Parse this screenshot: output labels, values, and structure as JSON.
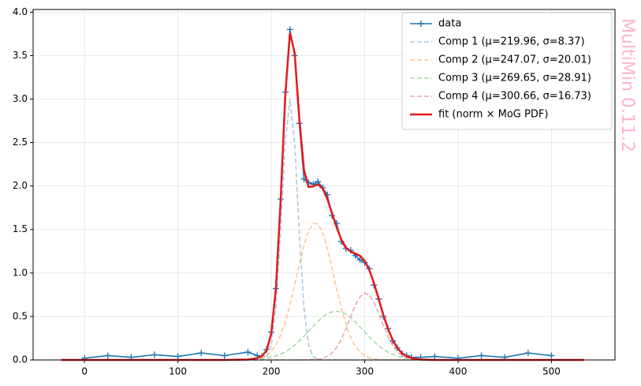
{
  "chart_data": {
    "type": "line",
    "watermark": "MultiMin 0.11.2",
    "x": [
      -25,
      0,
      25,
      50,
      75,
      100,
      125,
      150,
      175,
      185,
      190,
      195,
      200,
      205,
      210,
      215,
      220,
      225,
      230,
      235,
      240,
      245,
      250,
      255,
      260,
      265,
      270,
      275,
      280,
      285,
      290,
      295,
      300,
      305,
      310,
      315,
      320,
      325,
      330,
      335,
      340,
      345,
      350,
      360,
      375,
      400,
      425,
      450,
      475,
      500,
      535
    ],
    "series": [
      {
        "name": "data",
        "color": "#1f77b4",
        "linestyle": "solid",
        "marker": "+",
        "values": [
          null,
          0.02,
          0.05,
          0.03,
          0.06,
          0.04,
          0.08,
          0.05,
          0.09,
          0.05,
          0.04,
          0.12,
          0.32,
          0.82,
          1.85,
          3.08,
          3.8,
          3.5,
          2.72,
          2.08,
          2.04,
          2.02,
          2.05,
          1.98,
          1.9,
          1.66,
          1.57,
          1.36,
          1.28,
          1.26,
          1.2,
          1.15,
          1.12,
          1.05,
          0.86,
          0.7,
          0.5,
          0.36,
          0.22,
          0.14,
          0.07,
          0.05,
          0.03,
          0.03,
          0.04,
          0.02,
          0.05,
          0.03,
          0.08,
          0.05,
          null
        ]
      },
      {
        "name": "Comp 1 (μ=219.96, σ=8.37)",
        "color": "#a9c9e1",
        "linestyle": "dashed",
        "values": [
          0,
          0,
          0,
          0,
          0,
          0,
          0,
          0,
          0,
          0,
          0.005,
          0.035,
          0.175,
          0.608,
          1.478,
          2.516,
          3.0,
          2.503,
          1.461,
          0.597,
          0.171,
          0.034,
          0.005,
          0,
          0,
          0,
          0,
          0,
          0,
          0,
          0,
          0,
          0,
          0,
          0,
          0,
          0,
          0,
          0,
          0,
          0,
          0,
          0,
          0,
          0,
          0,
          0,
          0,
          0,
          0,
          0
        ]
      },
      {
        "name": "Comp 2 (μ=247.07, σ=20.01)",
        "color": "#ffc594",
        "linestyle": "dashed",
        "values": [
          0,
          0,
          0,
          0,
          0,
          0,
          0,
          0,
          0,
          0.013,
          0.027,
          0.053,
          0.099,
          0.173,
          0.284,
          0.437,
          0.633,
          0.86,
          1.098,
          1.317,
          1.484,
          1.572,
          1.563,
          1.461,
          1.282,
          1.058,
          0.819,
          0.597,
          0.408,
          0.262,
          0.158,
          0.09,
          0.048,
          0.024,
          0.011,
          0.005,
          0,
          0,
          0,
          0,
          0,
          0,
          0,
          0,
          0,
          0,
          0,
          0,
          0,
          0,
          0
        ]
      },
      {
        "name": "Comp 3 (μ=269.65, σ=28.91)",
        "color": "#aad9aa",
        "linestyle": "dashed",
        "values": [
          0,
          0,
          0,
          0,
          0,
          0,
          0,
          0,
          0.003,
          0.008,
          0.013,
          0.02,
          0.031,
          0.046,
          0.067,
          0.094,
          0.128,
          0.17,
          0.219,
          0.273,
          0.331,
          0.389,
          0.444,
          0.493,
          0.53,
          0.553,
          0.56,
          0.55,
          0.525,
          0.486,
          0.437,
          0.381,
          0.323,
          0.265,
          0.211,
          0.164,
          0.123,
          0.09,
          0.063,
          0.044,
          0.029,
          0.019,
          0.012,
          0.004,
          0,
          0,
          0,
          0,
          0,
          0,
          0
        ]
      },
      {
        "name": "Comp 4 (μ=300.66, σ=16.73)",
        "color": "#eaa9a9",
        "linestyle": "dashed",
        "values": [
          0,
          0,
          0,
          0,
          0,
          0,
          0,
          0,
          0,
          0,
          0,
          0,
          0,
          0,
          0,
          0,
          0,
          0,
          0,
          0,
          0.001,
          0.003,
          0.008,
          0.019,
          0.04,
          0.079,
          0.144,
          0.238,
          0.359,
          0.497,
          0.629,
          0.727,
          0.769,
          0.745,
          0.659,
          0.533,
          0.395,
          0.267,
          0.165,
          0.094,
          0.049,
          0.023,
          0.01,
          0.001,
          0,
          0,
          0,
          0,
          0,
          0,
          0
        ]
      },
      {
        "name": "fit (norm × MoG PDF)",
        "color": "#e31a1c",
        "linestyle": "solid",
        "width": 2.5,
        "values": [
          0,
          0,
          0,
          0,
          0,
          0,
          0,
          0,
          0.005,
          0.021,
          0.045,
          0.108,
          0.305,
          0.827,
          1.829,
          3.047,
          3.761,
          3.533,
          2.778,
          2.187,
          1.987,
          1.998,
          2.02,
          1.973,
          1.852,
          1.69,
          1.523,
          1.385,
          1.292,
          1.245,
          1.224,
          1.198,
          1.14,
          1.034,
          0.881,
          0.702,
          0.518,
          0.357,
          0.228,
          0.138,
          0.078,
          0.042,
          0.022,
          0.005,
          0,
          0,
          0,
          0,
          0,
          0,
          0
        ]
      }
    ],
    "xlim": [
      -55,
      568
    ],
    "xticks": [
      0,
      100,
      200,
      300,
      400,
      500
    ],
    "ylim": [
      0,
      4.03
    ],
    "yticks": [
      {
        "value": 0,
        "label": "0.0"
      },
      {
        "value": 0.5,
        "label": "0.5"
      },
      {
        "value": 1,
        "label": "1.0"
      },
      {
        "value": 1.5,
        "label": "1.5"
      },
      {
        "value": 2,
        "label": "2.0"
      },
      {
        "value": 2.5,
        "label": "2.5"
      },
      {
        "value": 3,
        "label": "3.0"
      },
      {
        "value": 3.5,
        "label": "3.5"
      },
      {
        "value": 4,
        "label": "4.0"
      }
    ],
    "grid": true,
    "legend": "upper right"
  }
}
